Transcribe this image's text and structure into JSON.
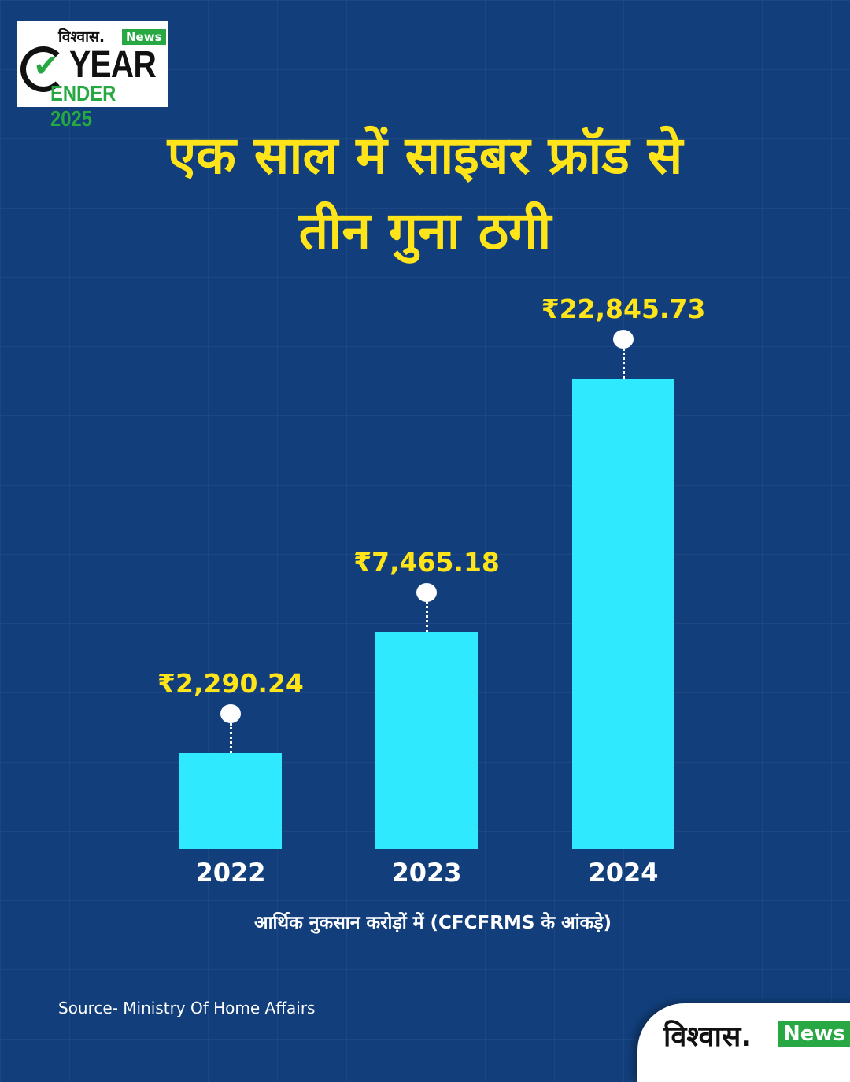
{
  "logo": {
    "brand_hindi": "विश्वास.",
    "brand_news": "News",
    "year": "YEAR",
    "ender": "ENDER 2025"
  },
  "title_lines": [
    "एक साल में साइबर फ्रॉड से",
    "तीन गुना ठगी"
  ],
  "colors": {
    "background": "#123f7c",
    "bar": "#2fe9ff",
    "accent": "#ffe41a",
    "brand_green": "#27a843"
  },
  "chart_data": {
    "type": "bar",
    "categories": [
      "2022",
      "2023",
      "2024"
    ],
    "values": [
      2290.24,
      7465.18,
      22845.73
    ],
    "value_labels": [
      "₹2,290.24",
      "₹7,465.18",
      "₹22,845.73"
    ],
    "xlabel": "आर्थिक नुकसान करोड़ों में (CFCFRMS के आंकड़े)",
    "ylabel": "",
    "grid": false
  },
  "source": "Source- Ministry Of Home Affairs",
  "footer_logo": {
    "brand_hindi": "विश्वास.",
    "brand_news": "News"
  }
}
